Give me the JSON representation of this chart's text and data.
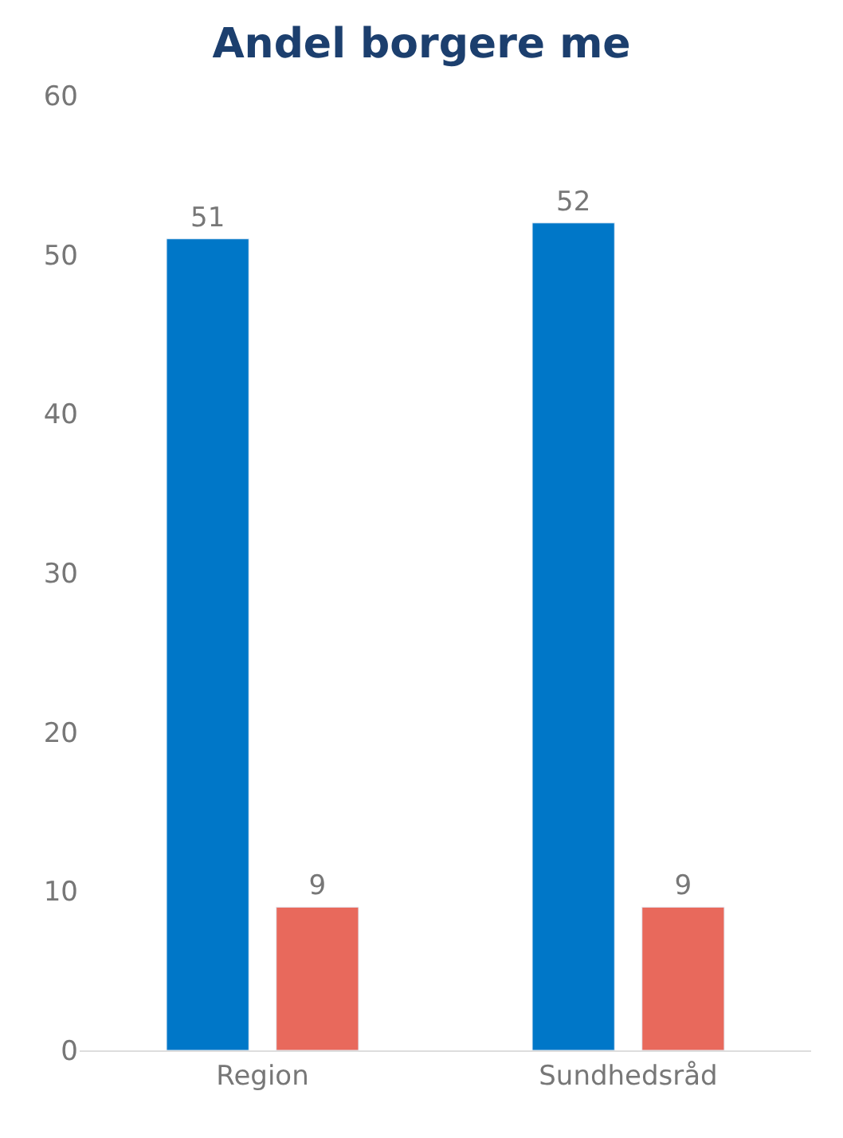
{
  "chart_data": {
    "type": "bar",
    "title": "Andel borgere me",
    "categories": [
      "Region",
      "Sundhedsråd"
    ],
    "series": [
      {
        "color": "#0077c8",
        "values": [
          51,
          52
        ]
      },
      {
        "color": "#e8695c",
        "values": [
          9,
          9
        ]
      }
    ],
    "ylim": [
      0,
      60
    ],
    "yticks": [
      0,
      10,
      20,
      30,
      40,
      50,
      60
    ],
    "data_labels": true,
    "legend": false
  }
}
